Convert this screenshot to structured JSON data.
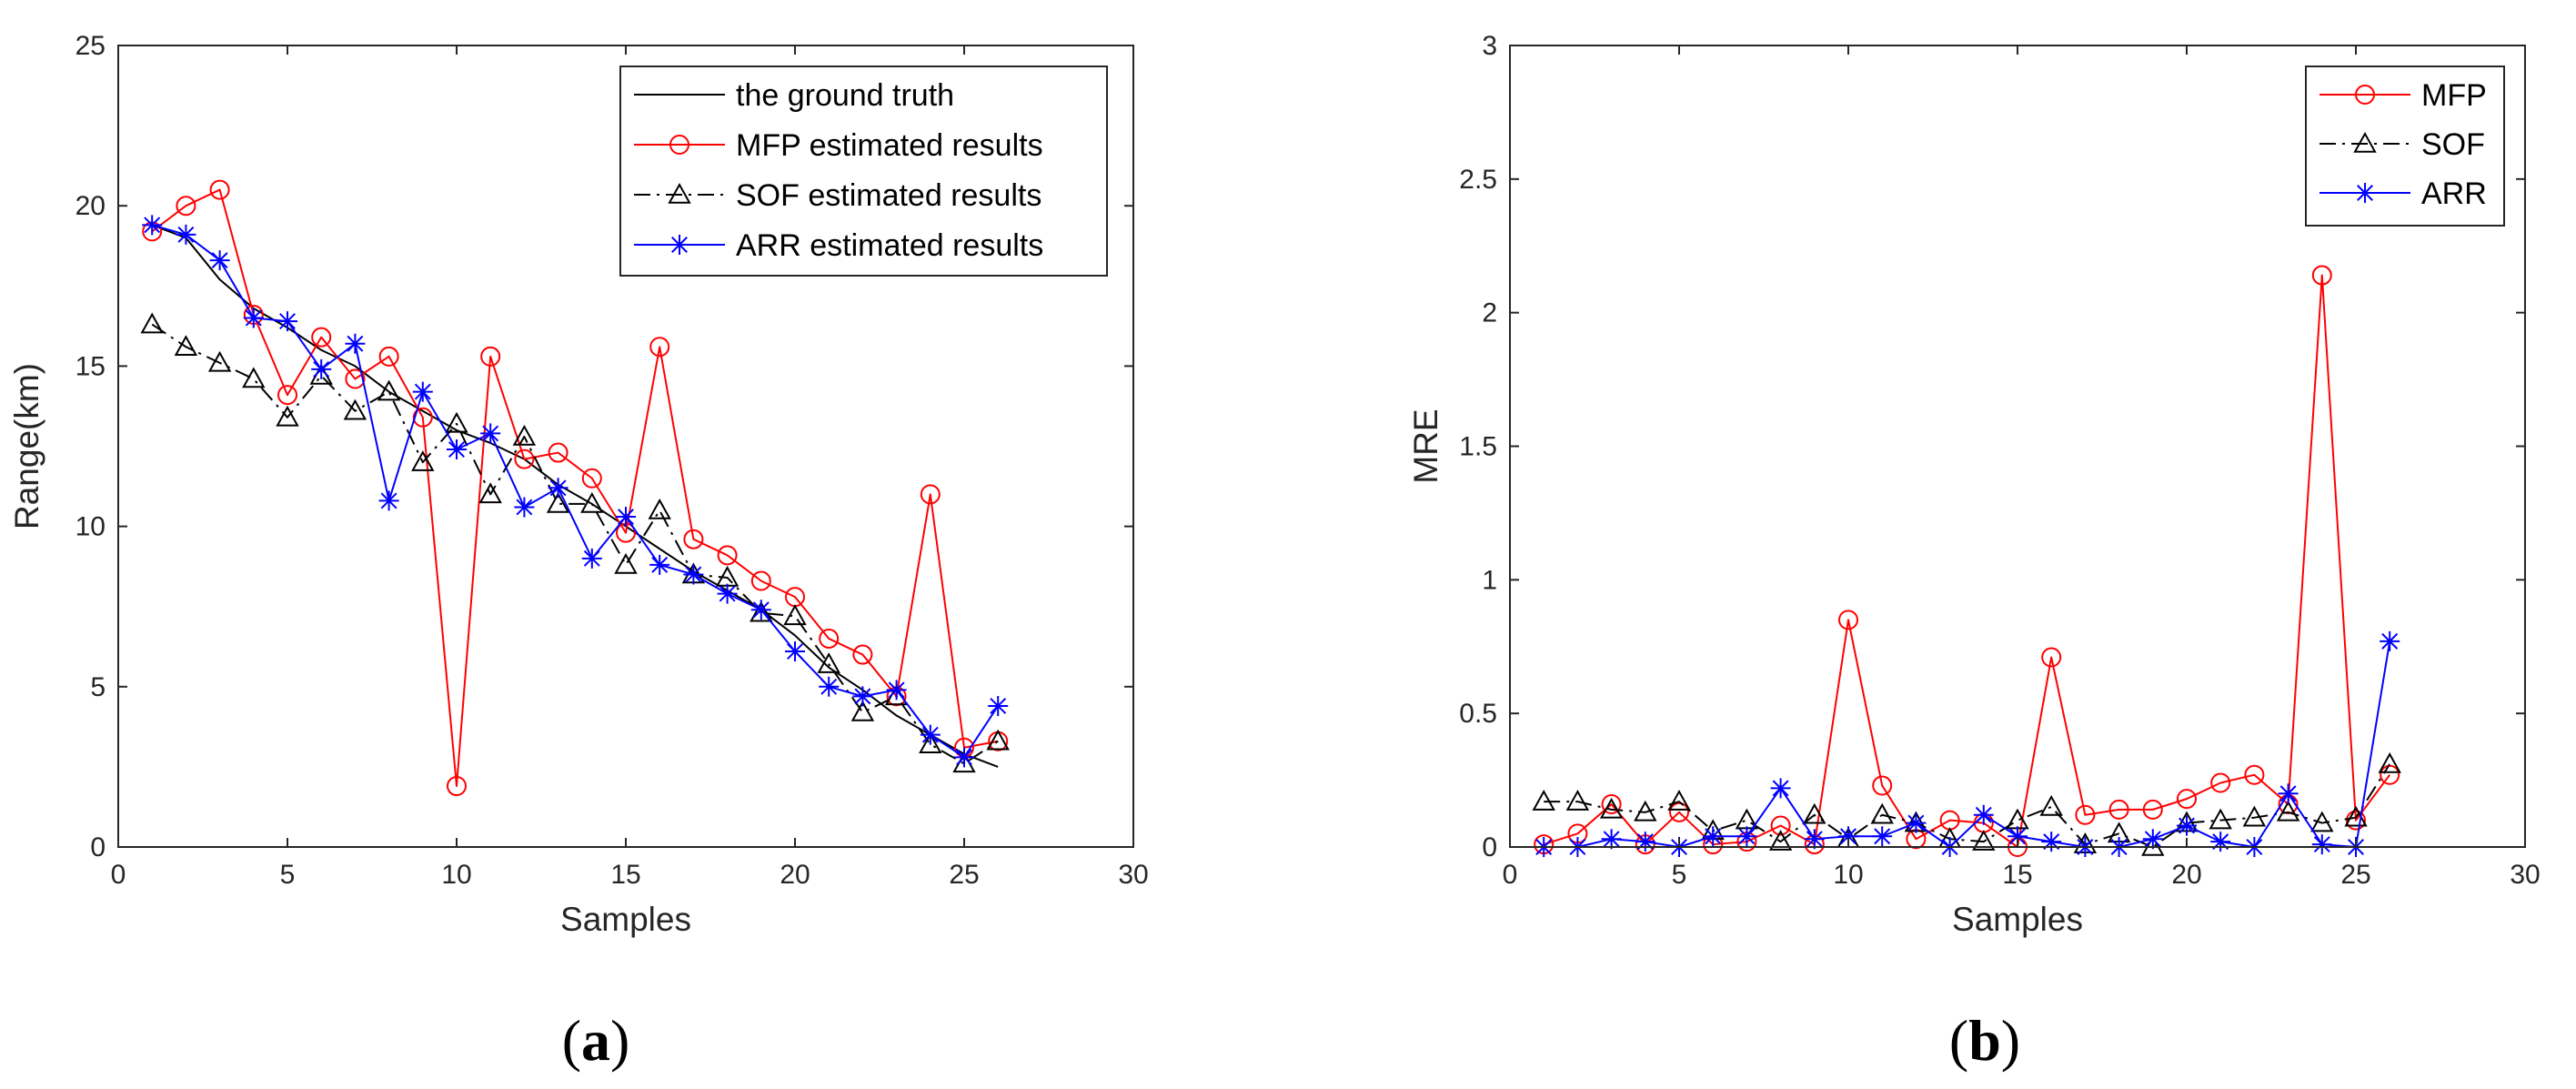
{
  "colors": {
    "truth": "#000000",
    "mfp": "#ff0000",
    "sof": "#000000",
    "arr": "#0000ff",
    "axis": "#262626",
    "background": "#ffffff"
  },
  "chart_data": [
    {
      "panel_label": "a",
      "type": "line",
      "title": "",
      "xlabel": "Samples",
      "ylabel": "Range(km)",
      "xlim": [
        0,
        30
      ],
      "ylim": [
        0,
        25
      ],
      "xticks": [
        0,
        5,
        10,
        15,
        20,
        25,
        30
      ],
      "yticks": [
        0,
        5,
        10,
        15,
        20,
        25
      ],
      "grid": false,
      "legend_position": "top-right",
      "x": [
        1,
        2,
        3,
        4,
        5,
        6,
        7,
        8,
        9,
        10,
        11,
        12,
        13,
        14,
        15,
        16,
        17,
        18,
        19,
        20,
        21,
        22,
        23,
        24,
        25,
        26
      ],
      "series": [
        {
          "name": "the ground truth",
          "key": "truth",
          "marker": "none",
          "line": "solid",
          "values": [
            19.4,
            19.0,
            17.7,
            16.8,
            16.2,
            15.5,
            15.0,
            14.2,
            13.6,
            13.0,
            12.6,
            12.1,
            11.3,
            10.7,
            10.0,
            9.3,
            8.6,
            8.0,
            7.4,
            6.6,
            5.6,
            4.9,
            4.1,
            3.5,
            2.9,
            2.5
          ]
        },
        {
          "name": "MFP estimated results",
          "key": "mfp",
          "marker": "circle",
          "line": "solid",
          "values": [
            19.2,
            20.0,
            20.5,
            16.6,
            14.1,
            15.9,
            14.6,
            15.3,
            13.4,
            1.9,
            15.3,
            12.1,
            12.3,
            11.5,
            9.8,
            15.6,
            9.6,
            9.1,
            8.3,
            7.8,
            6.5,
            6.0,
            4.7,
            11.0,
            3.1,
            3.3
          ]
        },
        {
          "name": "SOF estimated results",
          "key": "sof",
          "marker": "triangle",
          "line": "dashdot",
          "values": [
            16.3,
            15.6,
            15.1,
            14.6,
            13.4,
            14.7,
            13.6,
            14.2,
            12.0,
            13.2,
            11.0,
            12.8,
            10.7,
            10.7,
            8.8,
            10.5,
            8.5,
            8.4,
            7.3,
            7.2,
            5.7,
            4.2,
            4.7,
            3.2,
            2.6,
            3.3
          ]
        },
        {
          "name": "ARR estimated results",
          "key": "arr",
          "marker": "asterisk",
          "line": "solid",
          "values": [
            19.4,
            19.1,
            18.3,
            16.5,
            16.4,
            14.9,
            15.7,
            10.8,
            14.2,
            12.4,
            12.9,
            10.6,
            11.2,
            9.0,
            10.3,
            8.8,
            8.5,
            7.9,
            7.4,
            6.1,
            5.0,
            4.7,
            4.9,
            3.5,
            2.8,
            4.4
          ]
        }
      ]
    },
    {
      "panel_label": "b",
      "type": "line",
      "title": "",
      "xlabel": "Samples",
      "ylabel": "MRE",
      "xlim": [
        0,
        30
      ],
      "ylim": [
        0,
        3
      ],
      "xticks": [
        0,
        5,
        10,
        15,
        20,
        25,
        30
      ],
      "yticks": [
        0,
        0.5,
        1,
        1.5,
        2,
        2.5,
        3
      ],
      "grid": false,
      "legend_position": "top-right",
      "x": [
        1,
        2,
        3,
        4,
        5,
        6,
        7,
        8,
        9,
        10,
        11,
        12,
        13,
        14,
        15,
        16,
        17,
        18,
        19,
        20,
        21,
        22,
        23,
        24,
        25,
        26
      ],
      "series": [
        {
          "name": "MFP",
          "key": "mfp",
          "marker": "circle",
          "line": "solid",
          "values": [
            0.01,
            0.05,
            0.16,
            0.01,
            0.13,
            0.01,
            0.02,
            0.08,
            0.01,
            0.85,
            0.23,
            0.03,
            0.1,
            0.09,
            0.0,
            0.71,
            0.12,
            0.14,
            0.14,
            0.18,
            0.24,
            0.27,
            0.16,
            2.14,
            0.1,
            0.27
          ]
        },
        {
          "name": "SOF",
          "key": "sof",
          "marker": "triangle",
          "line": "dashdot",
          "values": [
            0.17,
            0.17,
            0.14,
            0.13,
            0.17,
            0.06,
            0.1,
            0.02,
            0.12,
            0.03,
            0.12,
            0.09,
            0.03,
            0.02,
            0.1,
            0.15,
            0.01,
            0.05,
            0.0,
            0.09,
            0.1,
            0.11,
            0.13,
            0.09,
            0.11,
            0.31
          ]
        },
        {
          "name": "ARR",
          "key": "arr",
          "marker": "asterisk",
          "line": "solid",
          "values": [
            0.0,
            0.0,
            0.03,
            0.02,
            0.0,
            0.04,
            0.04,
            0.22,
            0.03,
            0.04,
            0.04,
            0.09,
            0.0,
            0.12,
            0.04,
            0.02,
            0.0,
            0.0,
            0.03,
            0.08,
            0.02,
            0.0,
            0.2,
            0.01,
            0.0,
            0.77
          ]
        }
      ]
    }
  ]
}
